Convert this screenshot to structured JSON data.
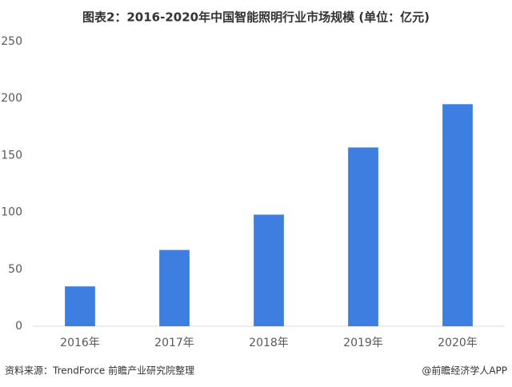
{
  "chart_data": {
    "type": "bar",
    "title": "图表2：2016-2020年中国智能照明行业市场规模 (单位：亿元)",
    "categories": [
      "2016年",
      "2017年",
      "2018年",
      "2019年",
      "2020年"
    ],
    "values": [
      35,
      67,
      98,
      157,
      195
    ],
    "color": "#3d7fe0",
    "ylim": [
      0,
      250
    ],
    "yticks": [
      0,
      50,
      100,
      150,
      200,
      250
    ],
    "grid": false,
    "source": "资料来源：TrendForce 前瞻产业研究院整理",
    "credit": "@前瞻经济学人APP"
  }
}
